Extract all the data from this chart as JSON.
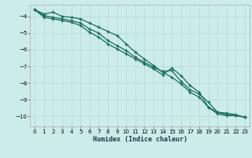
{
  "xlabel": "Humidex (Indice chaleur)",
  "bg_color": "#ccecea",
  "grid_color": "#b8dbd8",
  "line_color": "#1a6b5e",
  "xlim": [
    -0.5,
    23.5
  ],
  "ylim": [
    -10.6,
    -3.3
  ],
  "yticks": [
    -10,
    -9,
    -8,
    -7,
    -6,
    -5,
    -4
  ],
  "xticks": [
    0,
    1,
    2,
    3,
    4,
    5,
    6,
    7,
    8,
    9,
    10,
    11,
    12,
    13,
    14,
    15,
    16,
    17,
    18,
    19,
    20,
    21,
    22,
    23
  ],
  "line1_x": [
    0,
    1,
    2,
    3,
    4,
    5,
    6,
    7,
    8,
    9,
    10,
    11,
    12,
    13,
    14,
    15,
    16,
    17,
    18,
    19,
    20,
    21,
    22,
    23
  ],
  "line1_y": [
    -3.6,
    -3.85,
    -3.75,
    -4.0,
    -4.05,
    -4.15,
    -4.4,
    -4.65,
    -4.9,
    -5.15,
    -5.65,
    -6.15,
    -6.55,
    -6.95,
    -7.35,
    -7.65,
    -8.05,
    -8.55,
    -8.85,
    -9.45,
    -9.85,
    -9.95,
    -9.95,
    -10.05
  ],
  "line2_x": [
    0,
    1,
    2,
    3,
    4,
    5,
    6,
    7,
    8,
    9,
    10,
    11,
    12,
    13,
    14,
    15,
    16,
    17,
    18,
    19,
    20,
    21,
    22,
    23
  ],
  "line2_y": [
    -3.6,
    -3.95,
    -4.05,
    -4.15,
    -4.25,
    -4.4,
    -4.75,
    -5.0,
    -5.45,
    -5.75,
    -6.05,
    -6.45,
    -6.75,
    -7.05,
    -7.3,
    -7.25,
    -7.9,
    -8.4,
    -8.65,
    -9.15,
    -9.75,
    -9.9,
    -9.95,
    -10.05
  ],
  "line3_x": [
    0,
    1,
    2,
    3,
    4,
    5,
    6,
    7,
    8,
    9,
    10,
    11,
    12,
    13,
    14,
    15,
    16,
    17,
    18,
    19,
    20,
    21,
    22,
    23
  ],
  "line3_y": [
    -3.6,
    -4.05,
    -4.15,
    -4.25,
    -4.35,
    -4.55,
    -4.95,
    -5.25,
    -5.65,
    -5.95,
    -6.25,
    -6.55,
    -6.85,
    -7.15,
    -7.5,
    -7.1,
    -7.55,
    -8.15,
    -8.55,
    -9.45,
    -9.75,
    -9.8,
    -9.9,
    -10.05
  ]
}
